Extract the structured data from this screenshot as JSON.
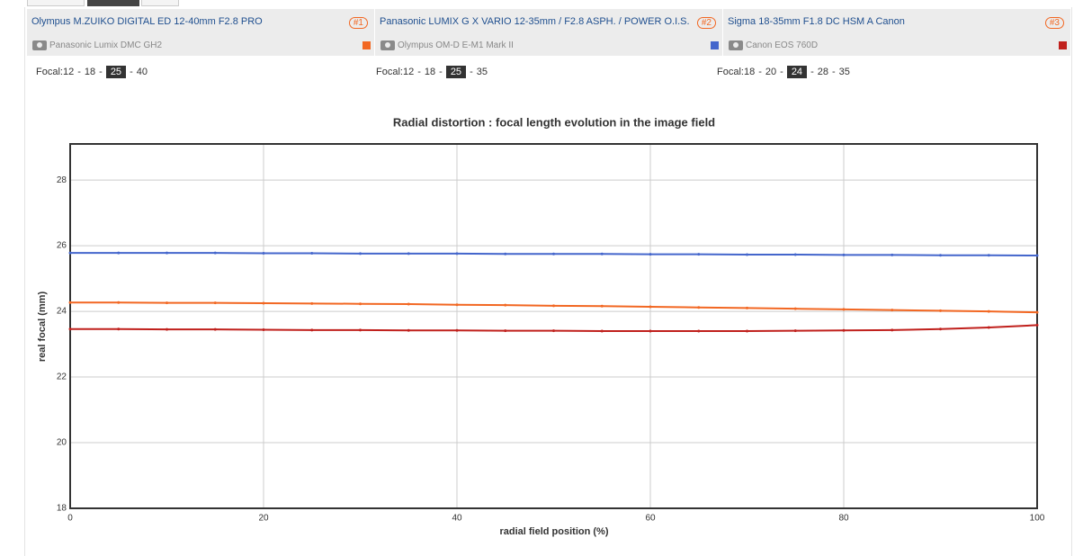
{
  "lenses": [
    {
      "name": "Olympus M.ZUIKO DIGITAL ED 12-40mm F2.8 PRO",
      "rank": "#1",
      "camera": "Panasonic Lumix DMC GH2",
      "focal_label": "Focal:",
      "focals": [
        12,
        18,
        25,
        40
      ],
      "selected": 25
    },
    {
      "name": "Panasonic LUMIX G X VARIO 12-35mm / F2.8 ASPH. / POWER O.I.S.",
      "rank": "#2",
      "camera": "Olympus OM-D E-M1 Mark II",
      "focal_label": "Focal:",
      "focals": [
        12,
        18,
        25,
        35
      ],
      "selected": 25
    },
    {
      "name": "Sigma 18-35mm F1.8 DC HSM A Canon",
      "rank": "#3",
      "camera": "Canon EOS 760D",
      "focal_label": "Focal:",
      "focals": [
        18,
        20,
        24,
        28,
        35
      ],
      "selected": 24
    }
  ],
  "focal_separator": "-",
  "chart_data": {
    "type": "line",
    "title": "Radial distortion : focal length evolution in the image field",
    "x_label": "radial field position (%)",
    "y_label": "real focal (mm)",
    "x": [
      0,
      5,
      10,
      15,
      20,
      25,
      30,
      35,
      40,
      45,
      50,
      55,
      60,
      65,
      70,
      75,
      80,
      85,
      90,
      95,
      100
    ],
    "series": [
      {
        "color": "#f26722",
        "values": [
          24.27,
          24.27,
          24.26,
          24.26,
          24.25,
          24.24,
          24.23,
          24.22,
          24.2,
          24.19,
          24.17,
          24.16,
          24.14,
          24.12,
          24.1,
          24.08,
          24.06,
          24.04,
          24.02,
          24.0,
          23.97
        ]
      },
      {
        "color": "#4466cc",
        "values": [
          25.78,
          25.78,
          25.78,
          25.78,
          25.77,
          25.77,
          25.76,
          25.76,
          25.76,
          25.75,
          25.75,
          25.75,
          25.74,
          25.74,
          25.73,
          25.73,
          25.72,
          25.72,
          25.71,
          25.71,
          25.7
        ]
      },
      {
        "color": "#c0201c",
        "values": [
          23.46,
          23.46,
          23.45,
          23.45,
          23.44,
          23.43,
          23.43,
          23.42,
          23.42,
          23.41,
          23.41,
          23.4,
          23.4,
          23.4,
          23.4,
          23.41,
          23.42,
          23.43,
          23.46,
          23.51,
          23.58
        ]
      }
    ],
    "xlim": [
      0,
      100
    ],
    "xticks": [
      0,
      20,
      40,
      60,
      80,
      100
    ],
    "ylim": [
      18,
      29.1
    ],
    "yticks": [
      18,
      20,
      22,
      24,
      26,
      28
    ],
    "grid": true
  }
}
